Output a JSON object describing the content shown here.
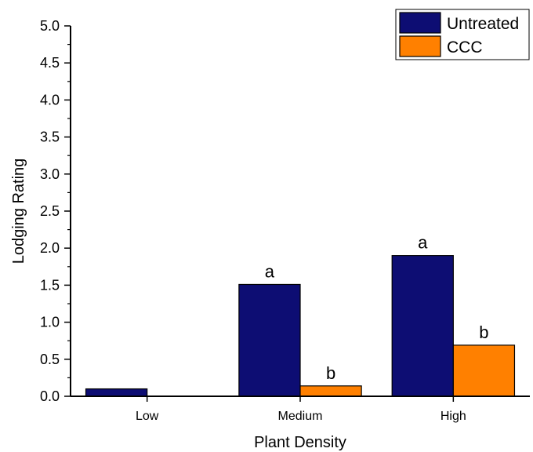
{
  "chart_data": {
    "type": "bar",
    "xlabel": "Plant Density",
    "ylabel": "Lodging Rating",
    "categories": [
      "Low",
      "Medium",
      "High"
    ],
    "ylim": [
      0,
      5.0
    ],
    "yticks": [
      "0.0",
      "0.5",
      "1.0",
      "1.5",
      "2.0",
      "2.5",
      "3.0",
      "3.5",
      "4.0",
      "4.5",
      "5.0"
    ],
    "series": [
      {
        "name": "Untreated",
        "values": [
          0.1,
          1.51,
          1.9
        ],
        "labels": [
          "",
          "a",
          "a"
        ],
        "color": "#0d0d73"
      },
      {
        "name": "CCC",
        "values": [
          0.0,
          0.14,
          0.69
        ],
        "labels": [
          "",
          "b",
          "b"
        ],
        "color": "#ff8000"
      }
    ],
    "legend_position": "top-right",
    "grid": false
  }
}
